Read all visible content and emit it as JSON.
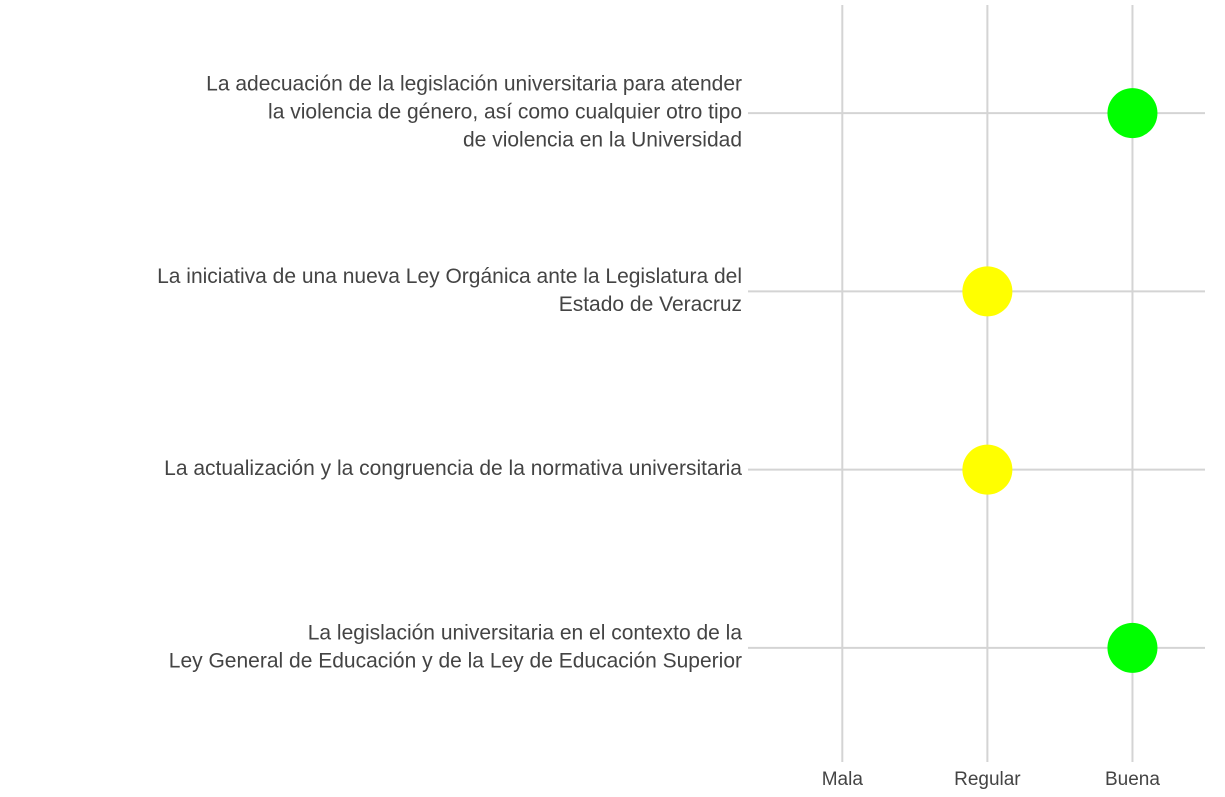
{
  "chart_data": {
    "type": "dot",
    "categories": [
      [
        "La adecuación de la legislación universitaria para atender",
        "la violencia de género, así como cualquier otro tipo",
        "de violencia en la Universidad"
      ],
      [
        "La iniciativa de una nueva Ley Orgánica ante la Legislatura del",
        "Estado de Veracruz"
      ],
      [
        "La actualización y la congruencia de la normativa universitaria"
      ],
      [
        "La legislación universitaria en el contexto de la",
        "Ley General de Educación y de la Ley de Educación Superior"
      ]
    ],
    "values": [
      3,
      2,
      2,
      3
    ],
    "colors": [
      "#00ff00",
      "#ffff00",
      "#ffff00",
      "#00ff00"
    ],
    "xlim": [
      0.35,
      3.5
    ],
    "xticks": [
      {
        "value": 1,
        "label": "Mala"
      },
      {
        "value": 2,
        "label": "Regular"
      },
      {
        "value": 3,
        "label": "Buena"
      }
    ],
    "grid": true
  }
}
